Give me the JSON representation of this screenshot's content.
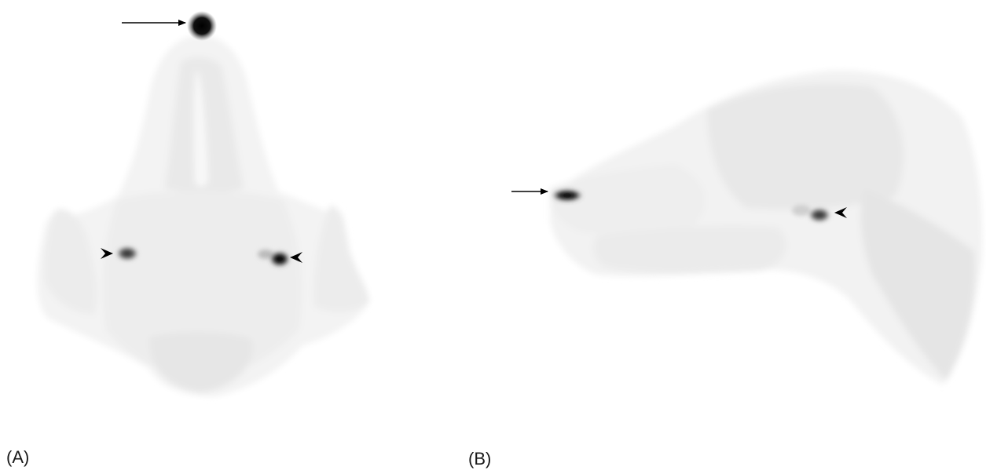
{
  "panels": [
    {
      "label": "(A)",
      "view": "dorsal"
    },
    {
      "label": "(B)",
      "view": "lateral"
    }
  ],
  "markers": {
    "arrow": "arrow-icon",
    "arrowhead": "arrowhead-icon"
  },
  "colors": {
    "background": "#ffffff",
    "tissue_light": "#f2f2f2",
    "tissue_mid": "#e8e8e8",
    "hotspot": "#111111",
    "marker": "#000000"
  }
}
